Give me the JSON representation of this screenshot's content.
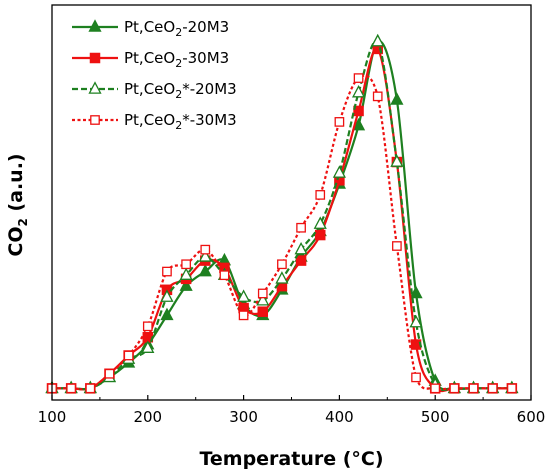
{
  "chart_data": {
    "type": "line",
    "xlabel": "Temperature (°C)",
    "ylabel": "CO2 (a.u.)",
    "xlim": [
      100,
      600
    ],
    "ylim": [
      0,
      100
    ],
    "x_ticks": [
      "100",
      "200",
      "300",
      "400",
      "500",
      "600"
    ],
    "y_ticks": [],
    "grid": false,
    "legend_position": "top-left",
    "series": [
      {
        "name": "Pt,CeO2-20M3",
        "name_parts": {
          "pre": "Pt,CeO",
          "sub": "2",
          "post": "-20M3"
        },
        "color": "#1e8020",
        "line_style": "solid",
        "marker": "triangle-filled",
        "x": [
          100,
          120,
          140,
          160,
          180,
          200,
          220,
          240,
          260,
          280,
          300,
          320,
          340,
          360,
          380,
          400,
          420,
          440,
          460,
          480,
          500,
          520,
          540,
          560,
          580
        ],
        "y": [
          1,
          1,
          1,
          4,
          8,
          13,
          21,
          29,
          33,
          36,
          24,
          21,
          28,
          37,
          44,
          57,
          73,
          96,
          80,
          27,
          3,
          1,
          1,
          1,
          1
        ]
      },
      {
        "name": "Pt,CeO2-30M3",
        "name_parts": {
          "pre": "Pt,CeO",
          "sub": "2",
          "post": "-30M3"
        },
        "color": "#ee1111",
        "line_style": "solid",
        "marker": "square-filled",
        "x": [
          100,
          120,
          140,
          160,
          180,
          200,
          220,
          240,
          260,
          280,
          300,
          320,
          340,
          360,
          380,
          400,
          420,
          440,
          460,
          480,
          500,
          520,
          540,
          560,
          580
        ],
        "y": [
          1,
          1,
          1,
          5,
          10,
          15,
          28,
          31,
          36,
          34,
          23,
          22,
          29,
          36,
          43,
          58,
          77,
          94,
          63,
          13,
          1,
          1,
          1,
          1,
          1
        ]
      },
      {
        "name": "Pt,CeO2*-20M3",
        "name_parts": {
          "pre": "Pt,CeO",
          "sub": "2",
          "post": "*-20M3"
        },
        "color": "#1e8020",
        "line_style": "dashed",
        "marker": "triangle-open",
        "x": [
          100,
          120,
          140,
          160,
          180,
          200,
          220,
          240,
          260,
          280,
          300,
          320,
          340,
          360,
          380,
          400,
          420,
          440,
          460,
          480,
          500,
          520,
          540,
          560,
          580
        ],
        "y": [
          1,
          1,
          1,
          4,
          9,
          12,
          26,
          32,
          37,
          32,
          26,
          25,
          31,
          39,
          46,
          60,
          82,
          96,
          63,
          19,
          2,
          1,
          1,
          1,
          1
        ]
      },
      {
        "name": "Pt,CeO2*-30M3",
        "name_parts": {
          "pre": "Pt,CeO",
          "sub": "2",
          "post": "*-30M3"
        },
        "color": "#ee1111",
        "line_style": "dotted",
        "marker": "square-open",
        "x": [
          100,
          120,
          140,
          160,
          180,
          200,
          220,
          240,
          260,
          280,
          300,
          320,
          340,
          360,
          380,
          400,
          420,
          440,
          460,
          480,
          500,
          520,
          540,
          560,
          580
        ],
        "y": [
          1,
          1,
          1,
          5,
          10,
          18,
          33,
          35,
          39,
          32,
          21,
          27,
          35,
          45,
          54,
          74,
          86,
          81,
          40,
          4,
          1,
          1,
          1,
          1,
          1
        ]
      }
    ]
  }
}
